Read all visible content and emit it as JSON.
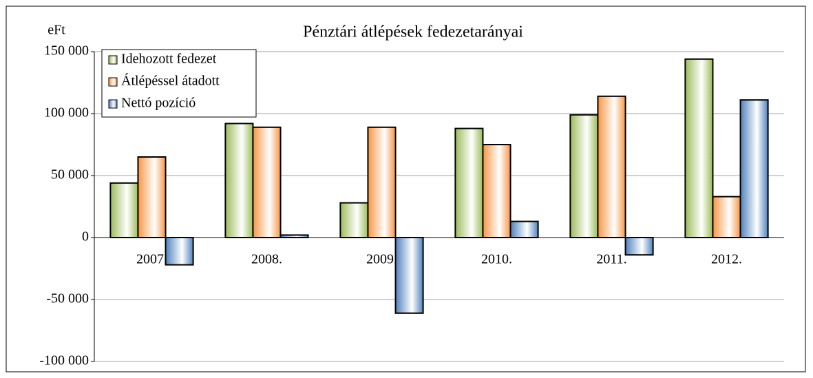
{
  "chart_data": {
    "type": "bar",
    "title": "Pénztári átlépések fedezetarányai",
    "y_label": "eFt",
    "categories": [
      "2007.",
      "2008.",
      "2009.",
      "2010.",
      "2011.",
      "2012."
    ],
    "series": [
      {
        "name": "Idehozott fedezet",
        "color": "#9bbb59",
        "values": [
          44000,
          92000,
          28000,
          88000,
          99000,
          144000
        ]
      },
      {
        "name": "Átlépéssel átadott",
        "color": "#f79646",
        "values": [
          65000,
          89000,
          89000,
          75000,
          114000,
          33000
        ]
      },
      {
        "name": "Nettó pozíció",
        "color": "#4f81bd",
        "values": [
          -22000,
          2000,
          -61000,
          13000,
          -14000,
          111000
        ]
      }
    ],
    "ylim": [
      -100000,
      150000
    ],
    "yticks": [
      {
        "value": -100000,
        "label": "-100 000"
      },
      {
        "value": -50000,
        "label": "-50 000"
      },
      0,
      {
        "value": 50000,
        "label": "50 000"
      },
      {
        "value": 100000,
        "label": "100 000"
      },
      {
        "value": 150000,
        "label": "150 000"
      }
    ],
    "grid": true,
    "legend": "top-left"
  }
}
